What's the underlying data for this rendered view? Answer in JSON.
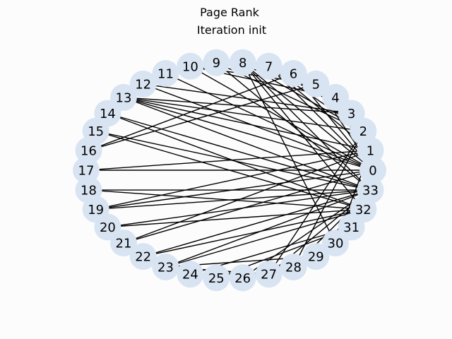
{
  "title": "Page Rank",
  "subtitle": "Iteration init",
  "colors": {
    "background": "#fcfcfd",
    "node_fill": "#d8e4f2",
    "edge": "#000000",
    "text": "#000000"
  },
  "graph": {
    "layout": "circular",
    "nodes": [
      {
        "id": 0,
        "label": "0"
      },
      {
        "id": 1,
        "label": "1"
      },
      {
        "id": 2,
        "label": "2"
      },
      {
        "id": 3,
        "label": "3"
      },
      {
        "id": 4,
        "label": "4"
      },
      {
        "id": 5,
        "label": "5"
      },
      {
        "id": 6,
        "label": "6"
      },
      {
        "id": 7,
        "label": "7"
      },
      {
        "id": 8,
        "label": "8"
      },
      {
        "id": 9,
        "label": "9"
      },
      {
        "id": 10,
        "label": "10"
      },
      {
        "id": 11,
        "label": "11"
      },
      {
        "id": 12,
        "label": "12"
      },
      {
        "id": 13,
        "label": "13"
      },
      {
        "id": 14,
        "label": "14"
      },
      {
        "id": 15,
        "label": "15"
      },
      {
        "id": 16,
        "label": "16"
      },
      {
        "id": 17,
        "label": "17"
      },
      {
        "id": 18,
        "label": "18"
      },
      {
        "id": 19,
        "label": "19"
      },
      {
        "id": 20,
        "label": "20"
      },
      {
        "id": 21,
        "label": "21"
      },
      {
        "id": 22,
        "label": "22"
      },
      {
        "id": 23,
        "label": "23"
      },
      {
        "id": 24,
        "label": "24"
      },
      {
        "id": 25,
        "label": "25"
      },
      {
        "id": 26,
        "label": "26"
      },
      {
        "id": 27,
        "label": "27"
      },
      {
        "id": 28,
        "label": "28"
      },
      {
        "id": 29,
        "label": "29"
      },
      {
        "id": 30,
        "label": "30"
      },
      {
        "id": 31,
        "label": "31"
      },
      {
        "id": 32,
        "label": "32"
      },
      {
        "id": 33,
        "label": "33"
      }
    ],
    "edges": [
      [
        0,
        1
      ],
      [
        0,
        2
      ],
      [
        0,
        3
      ],
      [
        0,
        4
      ],
      [
        0,
        5
      ],
      [
        0,
        6
      ],
      [
        0,
        7
      ],
      [
        0,
        8
      ],
      [
        0,
        10
      ],
      [
        0,
        11
      ],
      [
        0,
        12
      ],
      [
        0,
        13
      ],
      [
        0,
        17
      ],
      [
        0,
        19
      ],
      [
        0,
        21
      ],
      [
        0,
        31
      ],
      [
        1,
        2
      ],
      [
        1,
        3
      ],
      [
        1,
        7
      ],
      [
        1,
        13
      ],
      [
        1,
        17
      ],
      [
        1,
        19
      ],
      [
        1,
        21
      ],
      [
        1,
        30
      ],
      [
        2,
        3
      ],
      [
        2,
        7
      ],
      [
        2,
        8
      ],
      [
        2,
        9
      ],
      [
        2,
        13
      ],
      [
        2,
        27
      ],
      [
        2,
        28
      ],
      [
        2,
        32
      ],
      [
        3,
        7
      ],
      [
        3,
        12
      ],
      [
        3,
        13
      ],
      [
        4,
        6
      ],
      [
        4,
        10
      ],
      [
        5,
        6
      ],
      [
        5,
        10
      ],
      [
        5,
        16
      ],
      [
        6,
        16
      ],
      [
        8,
        30
      ],
      [
        8,
        32
      ],
      [
        8,
        33
      ],
      [
        9,
        33
      ],
      [
        13,
        33
      ],
      [
        14,
        32
      ],
      [
        14,
        33
      ],
      [
        15,
        32
      ],
      [
        15,
        33
      ],
      [
        18,
        32
      ],
      [
        18,
        33
      ],
      [
        19,
        33
      ],
      [
        20,
        32
      ],
      [
        20,
        33
      ],
      [
        22,
        32
      ],
      [
        22,
        33
      ],
      [
        23,
        25
      ],
      [
        23,
        27
      ],
      [
        23,
        29
      ],
      [
        23,
        32
      ],
      [
        23,
        33
      ],
      [
        24,
        25
      ],
      [
        24,
        27
      ],
      [
        24,
        31
      ],
      [
        25,
        31
      ],
      [
        26,
        29
      ],
      [
        26,
        33
      ],
      [
        27,
        33
      ],
      [
        28,
        31
      ],
      [
        28,
        33
      ],
      [
        29,
        32
      ],
      [
        29,
        33
      ],
      [
        30,
        32
      ],
      [
        30,
        33
      ],
      [
        31,
        32
      ],
      [
        31,
        33
      ],
      [
        32,
        33
      ]
    ]
  }
}
